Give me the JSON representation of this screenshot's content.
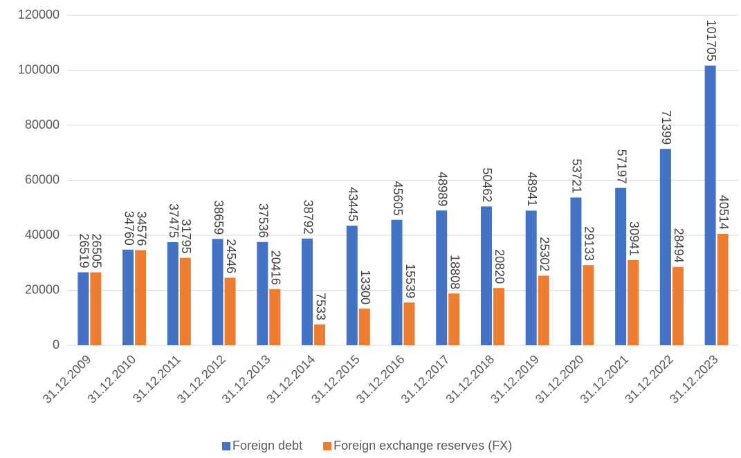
{
  "chart_data": {
    "type": "bar",
    "categories": [
      "31.12.2009",
      "31.12.2010",
      "31.12.2011",
      "31.12.2012",
      "31.12.2013",
      "31.12.2014",
      "31.12.2015",
      "31.12.2016",
      "31.12.2017",
      "31.12.2018",
      "31.12.2019",
      "31.12.2020",
      "31.12.2021",
      "31.12.2022",
      "31.12.2023"
    ],
    "series": [
      {
        "name": "Foreign debt",
        "color": "#4472c4",
        "values": [
          26519,
          34760,
          37475,
          38659,
          37536,
          38792,
          43445,
          45605,
          48989,
          50462,
          48941,
          53721,
          57197,
          71399,
          101705
        ]
      },
      {
        "name": "Foreign exchange reserves (FX)",
        "color": "#ed7d31",
        "values": [
          26505,
          34576,
          31795,
          24546,
          20416,
          7533,
          13300,
          15539,
          18808,
          20820,
          25302,
          29133,
          30941,
          28494,
          40514
        ]
      }
    ],
    "ylim": [
      0,
      120000
    ],
    "yticks": [
      0,
      20000,
      40000,
      60000,
      80000,
      100000,
      120000
    ],
    "grid": true,
    "legend": "bottom"
  }
}
